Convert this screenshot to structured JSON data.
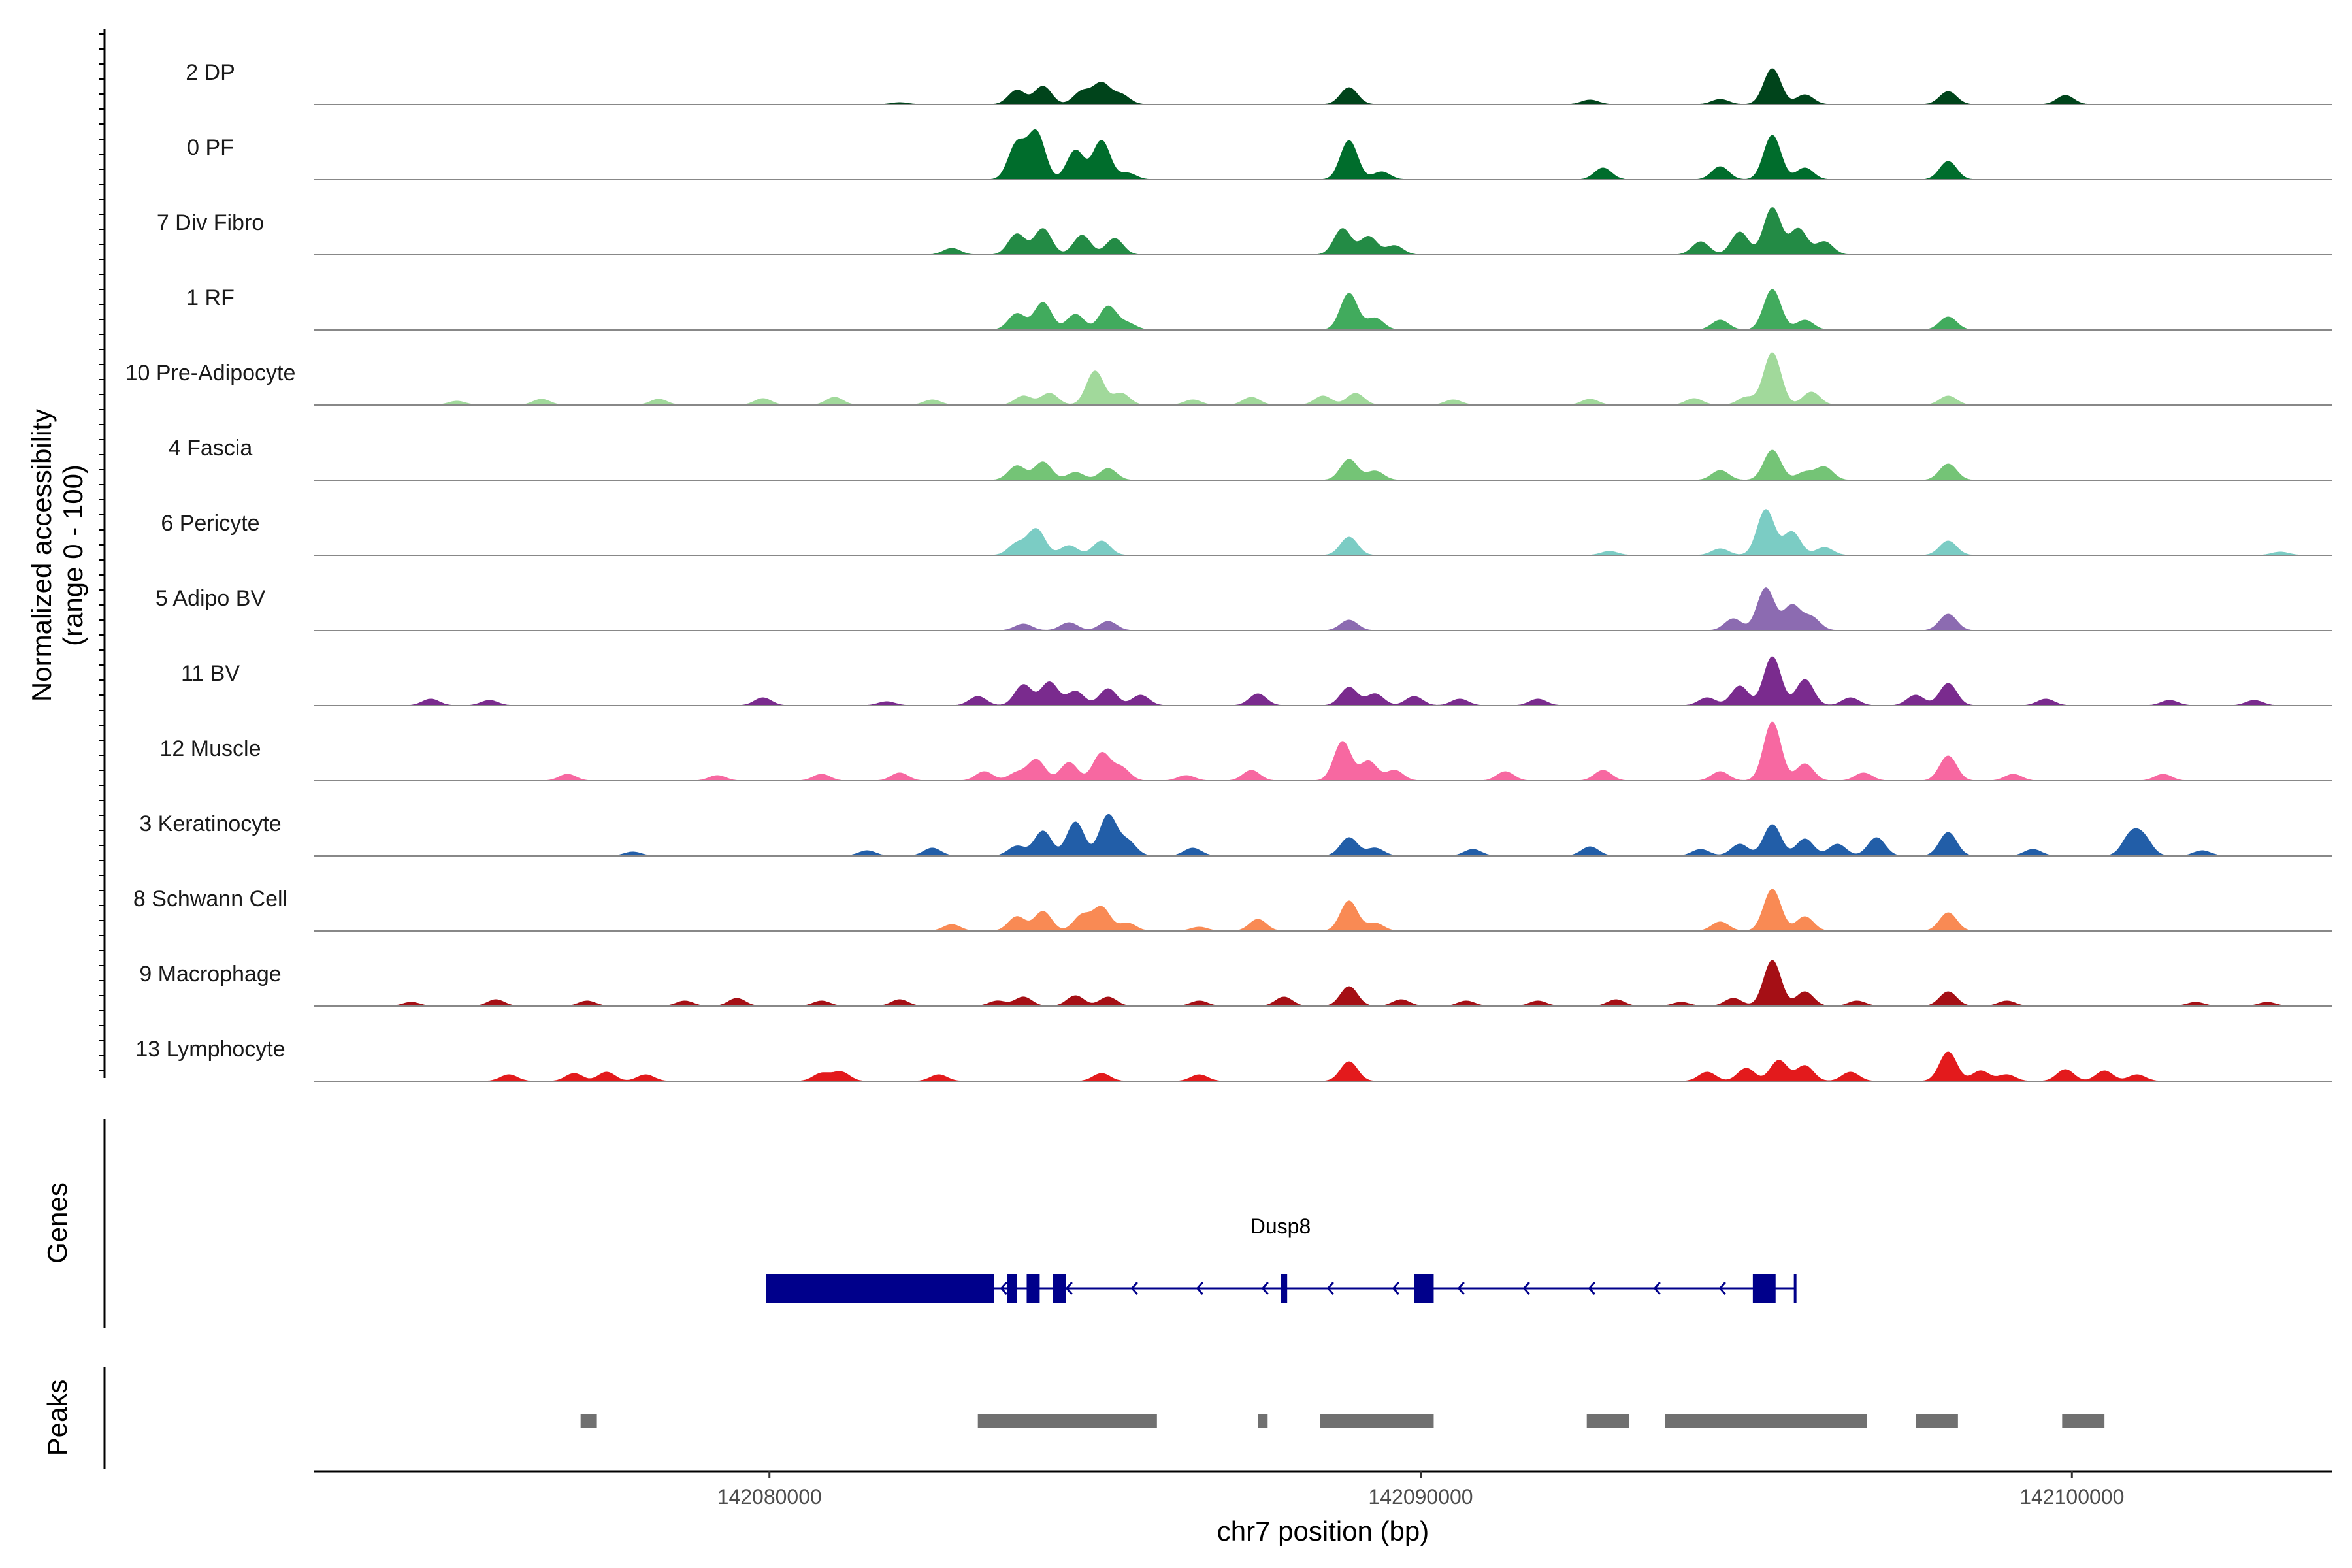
{
  "chart_data": {
    "type": "area",
    "title": "",
    "chromosome": "chr7",
    "xlabel": "chr7 position (bp)",
    "ylabel_line1": "Normalized accessibility",
    "ylabel_line2": "(range 0 - 100)",
    "genes_label": "Genes",
    "peaks_label": "Peaks",
    "xlim": [
      142073000,
      142104000
    ],
    "ylim": [
      0,
      100
    ],
    "x_ticks": [
      142080000,
      142090000,
      142100000
    ],
    "x_tick_labels": [
      "142080000",
      "142090000",
      "142100000"
    ],
    "tracks": [
      {
        "name": "2 DP",
        "color": "#00441b",
        "peaks": [
          [
            142082000,
            3
          ],
          [
            142083800,
            22
          ],
          [
            142084200,
            28
          ],
          [
            142084800,
            20
          ],
          [
            142085100,
            32
          ],
          [
            142085400,
            15
          ],
          [
            142088900,
            26
          ],
          [
            142092600,
            7
          ],
          [
            142094600,
            8
          ],
          [
            142095400,
            55
          ],
          [
            142095900,
            15
          ],
          [
            142098100,
            20
          ],
          [
            142099900,
            14
          ]
        ]
      },
      {
        "name": "0 PF",
        "color": "#006d2c",
        "peaks": [
          [
            142083800,
            55
          ],
          [
            142084100,
            72
          ],
          [
            142084700,
            45
          ],
          [
            142085100,
            60
          ],
          [
            142085500,
            10
          ],
          [
            142088900,
            60
          ],
          [
            142089400,
            12
          ],
          [
            142092800,
            18
          ],
          [
            142094600,
            20
          ],
          [
            142095400,
            68
          ],
          [
            142095900,
            18
          ],
          [
            142098100,
            28
          ]
        ]
      },
      {
        "name": "7 Div Fibro",
        "color": "#238b45",
        "peaks": [
          [
            142082800,
            10
          ],
          [
            142083800,
            32
          ],
          [
            142084200,
            40
          ],
          [
            142084800,
            30
          ],
          [
            142085300,
            25
          ],
          [
            142088800,
            40
          ],
          [
            142089200,
            28
          ],
          [
            142089600,
            14
          ],
          [
            142094300,
            20
          ],
          [
            142094900,
            35
          ],
          [
            142095400,
            72
          ],
          [
            142095800,
            40
          ],
          [
            142096200,
            20
          ]
        ]
      },
      {
        "name": "1 RF",
        "color": "#41ab5d",
        "peaks": [
          [
            142083800,
            25
          ],
          [
            142084200,
            42
          ],
          [
            142084700,
            24
          ],
          [
            142085200,
            36
          ],
          [
            142085500,
            10
          ],
          [
            142088900,
            56
          ],
          [
            142089300,
            18
          ],
          [
            142094600,
            15
          ],
          [
            142095400,
            62
          ],
          [
            142095900,
            15
          ],
          [
            142098100,
            20
          ]
        ]
      },
      {
        "name": "10 Pre-Adipocyte",
        "color": "#a1d99b",
        "peaks": [
          [
            142075200,
            6
          ],
          [
            142076500,
            9
          ],
          [
            142078300,
            9
          ],
          [
            142079900,
            10
          ],
          [
            142081000,
            12
          ],
          [
            142082500,
            8
          ],
          [
            142083900,
            14
          ],
          [
            142084300,
            18
          ],
          [
            142085000,
            52
          ],
          [
            142085400,
            18
          ],
          [
            142086500,
            8
          ],
          [
            142087400,
            12
          ],
          [
            142088500,
            14
          ],
          [
            142089000,
            18
          ],
          [
            142090500,
            8
          ],
          [
            142092600,
            9
          ],
          [
            142094200,
            10
          ],
          [
            142095000,
            12
          ],
          [
            142095400,
            80
          ],
          [
            142096000,
            20
          ],
          [
            142098100,
            14
          ]
        ]
      },
      {
        "name": "4 Fascia",
        "color": "#74c476",
        "peaks": [
          [
            142083800,
            22
          ],
          [
            142084200,
            28
          ],
          [
            142084700,
            12
          ],
          [
            142085200,
            18
          ],
          [
            142088900,
            32
          ],
          [
            142089300,
            14
          ],
          [
            142094600,
            15
          ],
          [
            142095400,
            46
          ],
          [
            142095900,
            12
          ],
          [
            142096200,
            20
          ],
          [
            142098100,
            25
          ]
        ]
      },
      {
        "name": "6 Pericyte",
        "color": "#7bccc4",
        "peaks": [
          [
            142083800,
            18
          ],
          [
            142084100,
            40
          ],
          [
            142084600,
            15
          ],
          [
            142085100,
            22
          ],
          [
            142088900,
            28
          ],
          [
            142092900,
            6
          ],
          [
            142094600,
            10
          ],
          [
            142095300,
            70
          ],
          [
            142095700,
            36
          ],
          [
            142096200,
            12
          ],
          [
            142098100,
            22
          ],
          [
            142103200,
            5
          ]
        ]
      },
      {
        "name": "5 Adipo BV",
        "color": "#8c6bb1",
        "peaks": [
          [
            142083900,
            10
          ],
          [
            142084600,
            12
          ],
          [
            142085200,
            14
          ],
          [
            142088900,
            16
          ],
          [
            142094800,
            18
          ],
          [
            142095300,
            65
          ],
          [
            142095700,
            38
          ],
          [
            142096000,
            20
          ],
          [
            142098100,
            25
          ]
        ]
      },
      {
        "name": "11 BV",
        "color": "#7a2b8e",
        "peaks": [
          [
            142074800,
            10
          ],
          [
            142075700,
            8
          ],
          [
            142079900,
            12
          ],
          [
            142081800,
            6
          ],
          [
            142083200,
            14
          ],
          [
            142083900,
            32
          ],
          [
            142084300,
            36
          ],
          [
            142084700,
            22
          ],
          [
            142085200,
            26
          ],
          [
            142085700,
            16
          ],
          [
            142087500,
            18
          ],
          [
            142088900,
            28
          ],
          [
            142089300,
            18
          ],
          [
            142089900,
            14
          ],
          [
            142090600,
            10
          ],
          [
            142091800,
            10
          ],
          [
            142094400,
            12
          ],
          [
            142094900,
            30
          ],
          [
            142095400,
            75
          ],
          [
            142095900,
            40
          ],
          [
            142096600,
            12
          ],
          [
            142097600,
            16
          ],
          [
            142098100,
            34
          ],
          [
            142099600,
            10
          ],
          [
            142101500,
            8
          ],
          [
            142102800,
            8
          ]
        ]
      },
      {
        "name": "12 Muscle",
        "color": "#f768a1",
        "peaks": [
          [
            142076900,
            10
          ],
          [
            142079200,
            8
          ],
          [
            142080800,
            10
          ],
          [
            142082000,
            12
          ],
          [
            142083300,
            14
          ],
          [
            142083800,
            12
          ],
          [
            142084100,
            32
          ],
          [
            142084600,
            28
          ],
          [
            142085100,
            42
          ],
          [
            142085400,
            20
          ],
          [
            142086400,
            8
          ],
          [
            142087400,
            16
          ],
          [
            142088800,
            60
          ],
          [
            142089200,
            30
          ],
          [
            142089600,
            16
          ],
          [
            142091300,
            14
          ],
          [
            142092800,
            16
          ],
          [
            142094600,
            14
          ],
          [
            142095400,
            90
          ],
          [
            142095900,
            26
          ],
          [
            142096800,
            12
          ],
          [
            142098100,
            38
          ],
          [
            142099100,
            10
          ],
          [
            142101400,
            10
          ]
        ]
      },
      {
        "name": "3 Keratinocyte",
        "color": "#225ea8",
        "peaks": [
          [
            142077900,
            6
          ],
          [
            142081500,
            8
          ],
          [
            142082500,
            12
          ],
          [
            142083800,
            15
          ],
          [
            142084200,
            38
          ],
          [
            142084700,
            52
          ],
          [
            142085200,
            62
          ],
          [
            142085500,
            22
          ],
          [
            142086500,
            12
          ],
          [
            142088900,
            28
          ],
          [
            142089300,
            12
          ],
          [
            142090800,
            10
          ],
          [
            142092600,
            14
          ],
          [
            142094300,
            10
          ],
          [
            142094900,
            18
          ],
          [
            142095400,
            48
          ],
          [
            142095900,
            26
          ],
          [
            142096400,
            18
          ],
          [
            142097000,
            28
          ],
          [
            142098100,
            36
          ],
          [
            142099400,
            10
          ],
          [
            142100900,
            30
          ],
          [
            142101100,
            26
          ],
          [
            142102000,
            8
          ]
        ]
      },
      {
        "name": "8 Schwann Cell",
        "color": "#f98a54",
        "peaks": [
          [
            142082800,
            10
          ],
          [
            142083800,
            22
          ],
          [
            142084200,
            30
          ],
          [
            142084800,
            24
          ],
          [
            142085100,
            36
          ],
          [
            142085500,
            12
          ],
          [
            142086600,
            6
          ],
          [
            142087500,
            18
          ],
          [
            142088900,
            46
          ],
          [
            142089300,
            12
          ],
          [
            142094600,
            14
          ],
          [
            142095400,
            64
          ],
          [
            142095900,
            22
          ],
          [
            142098100,
            28
          ]
        ]
      },
      {
        "name": "9 Macrophage",
        "color": "#a50f15",
        "peaks": [
          [
            142074500,
            6
          ],
          [
            142075800,
            10
          ],
          [
            142077200,
            8
          ],
          [
            142078700,
            8
          ],
          [
            142079500,
            12
          ],
          [
            142080800,
            8
          ],
          [
            142082000,
            10
          ],
          [
            142083500,
            8
          ],
          [
            142083900,
            14
          ],
          [
            142084700,
            16
          ],
          [
            142085200,
            14
          ],
          [
            142086600,
            8
          ],
          [
            142087900,
            14
          ],
          [
            142088900,
            30
          ],
          [
            142089700,
            10
          ],
          [
            142090700,
            8
          ],
          [
            142091800,
            8
          ],
          [
            142093000,
            10
          ],
          [
            142094000,
            6
          ],
          [
            142094800,
            12
          ],
          [
            142095400,
            70
          ],
          [
            142095900,
            22
          ],
          [
            142096700,
            8
          ],
          [
            142098100,
            22
          ],
          [
            142099000,
            8
          ],
          [
            142101900,
            6
          ],
          [
            142103000,
            6
          ]
        ]
      },
      {
        "name": "13 Lymphocyte",
        "color": "#e31a1c",
        "peaks": [
          [
            142076000,
            10
          ],
          [
            142077000,
            12
          ],
          [
            142077500,
            14
          ],
          [
            142078100,
            10
          ],
          [
            142080800,
            12
          ],
          [
            142081100,
            14
          ],
          [
            142082600,
            10
          ],
          [
            142085100,
            12
          ],
          [
            142086600,
            10
          ],
          [
            142088900,
            30
          ],
          [
            142094400,
            14
          ],
          [
            142095000,
            20
          ],
          [
            142095500,
            32
          ],
          [
            142095900,
            24
          ],
          [
            142096600,
            14
          ],
          [
            142098100,
            45
          ],
          [
            142098600,
            16
          ],
          [
            142099000,
            10
          ],
          [
            142099900,
            18
          ],
          [
            142100500,
            16
          ],
          [
            142101000,
            10
          ]
        ]
      }
    ],
    "gene": {
      "name": "Dusp8",
      "strand": "-",
      "tx_start": 142079950,
      "tx_end": 142095750,
      "exons": [
        [
          142079950,
          142083450
        ],
        [
          142083650,
          142083800
        ],
        [
          142083950,
          142084150
        ],
        [
          142084350,
          142084550
        ],
        [
          142087850,
          142087950
        ],
        [
          142089900,
          142090200
        ],
        [
          142095100,
          142095450
        ]
      ],
      "color": "#00008b"
    },
    "peaks_track": {
      "color": "#707070",
      "regions": [
        [
          142077100,
          142077350
        ],
        [
          142083200,
          142085950
        ],
        [
          142087500,
          142087650
        ],
        [
          142088450,
          142090200
        ],
        [
          142092550,
          142093200
        ],
        [
          142093750,
          142096850
        ],
        [
          142097600,
          142098250
        ],
        [
          142099850,
          142100500
        ]
      ]
    }
  }
}
